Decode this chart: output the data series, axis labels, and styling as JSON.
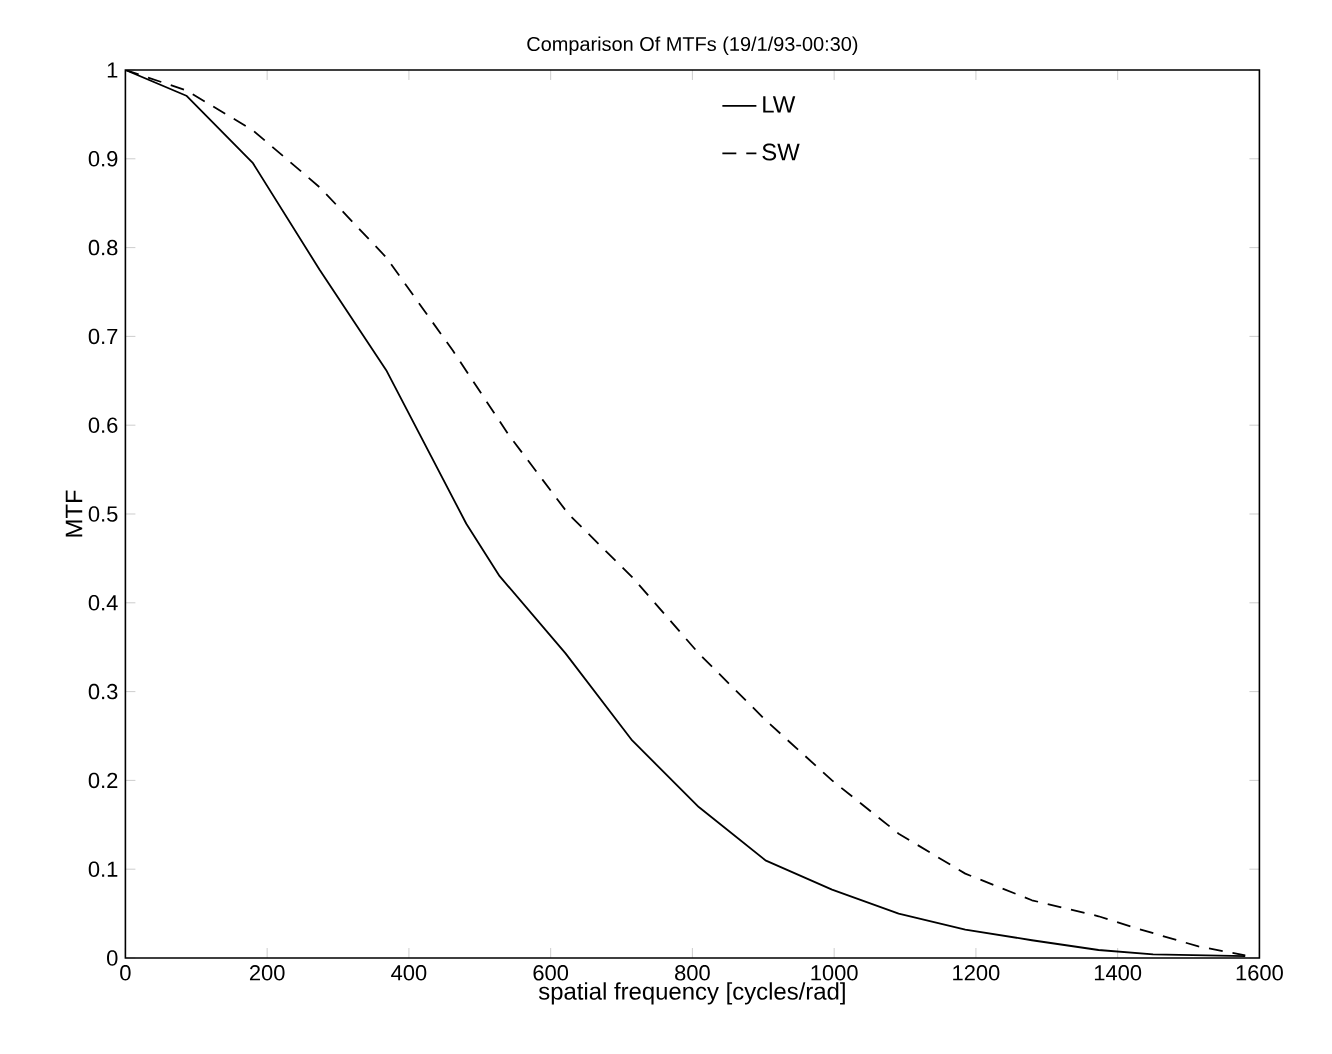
{
  "chart_data": {
    "type": "line",
    "title": "Comparison Of MTFs (19/1/93-00:30)",
    "xlabel": "spatial frequency [cycles/rad]",
    "ylabel": "MTF",
    "xlim": [
      0,
      1600
    ],
    "ylim": [
      0,
      1
    ],
    "xticks": [
      0,
      200,
      400,
      600,
      800,
      1000,
      1200,
      1400,
      1600
    ],
    "yticks": [
      0,
      0.1,
      0.2,
      0.3,
      0.4,
      0.5,
      0.6,
      0.7,
      0.8,
      0.9,
      1
    ],
    "grid": false,
    "legend": "top",
    "marker": "none",
    "series": [
      {
        "name": "LW",
        "color": "#000000",
        "line_style": "solid",
        "x": [
          0,
          86,
          180,
          274,
          368,
          481,
          528,
          621,
          715,
          809,
          903,
          997,
          1091,
          1185,
          1279,
          1373,
          1450,
          1580
        ],
        "values": [
          1,
          0.971,
          0.895,
          0.775,
          0.662,
          0.489,
          0.43,
          0.343,
          0.245,
          0.17,
          0.11,
          0.077,
          0.05,
          0.032,
          0.02,
          0.009,
          0.004,
          0.002
        ]
      },
      {
        "name": "SW",
        "color": "#000000",
        "line_style": "dashed",
        "x": [
          0,
          86,
          180,
          274,
          368,
          462,
          540,
          625,
          715,
          809,
          903,
          997,
          1091,
          1185,
          1279,
          1373,
          1420,
          1514,
          1580
        ],
        "values": [
          1,
          0.977,
          0.932,
          0.868,
          0.789,
          0.684,
          0.59,
          0.5,
          0.429,
          0.343,
          0.268,
          0.2,
          0.14,
          0.095,
          0.065,
          0.047,
          0.035,
          0.013,
          0.003
        ]
      }
    ]
  }
}
